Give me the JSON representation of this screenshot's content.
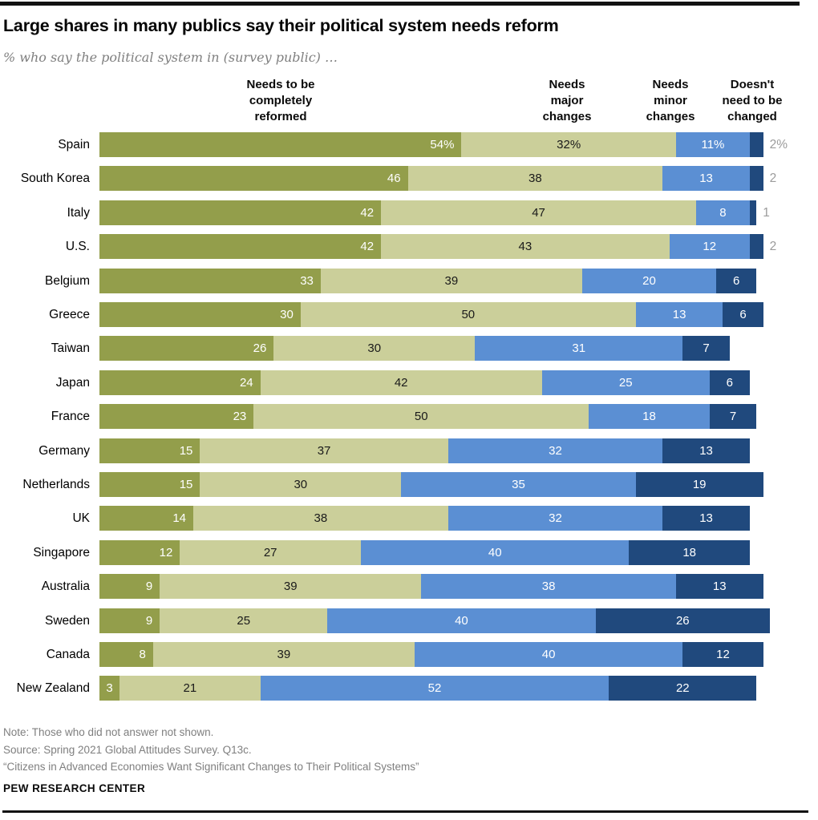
{
  "header": {
    "title": "Large shares in many publics say their political system needs reform",
    "subtitle": "% who say the political system in (survey public) …"
  },
  "column_headers": [
    "Needs to be\ncompletely\nreformed",
    "Needs\nmajor\nchanges",
    "Needs\nminor\nchanges",
    "Doesn't\nneed to be\nchanged"
  ],
  "colors": {
    "completely_reformed": "#939E4B",
    "major_changes": "#CBCF9A",
    "minor_changes": "#5B8FD3",
    "not_changed": "#20497D",
    "outside_label": "#9B9B9B",
    "rule": "#121212",
    "note_text": "#7F7F7F"
  },
  "chart_data": {
    "type": "bar",
    "orientation": "horizontal",
    "stacked": true,
    "xlim": [
      0,
      100
    ],
    "grid": false,
    "legend_position": "top-as-column-headers",
    "value_suffix_first_row": "%",
    "categories": [
      "Spain",
      "South Korea",
      "Italy",
      "U.S.",
      "Belgium",
      "Greece",
      "Taiwan",
      "Japan",
      "France",
      "Germany",
      "Netherlands",
      "UK",
      "Singapore",
      "Australia",
      "Sweden",
      "Canada",
      "New Zealand"
    ],
    "series": [
      {
        "name": "Needs to be completely reformed",
        "color": "#939E4B",
        "values": [
          54,
          46,
          42,
          42,
          33,
          30,
          26,
          24,
          23,
          15,
          15,
          14,
          12,
          9,
          9,
          8,
          3
        ]
      },
      {
        "name": "Needs major changes",
        "color": "#CBCF9A",
        "values": [
          32,
          38,
          47,
          43,
          39,
          50,
          30,
          42,
          50,
          37,
          30,
          38,
          27,
          39,
          25,
          39,
          21
        ]
      },
      {
        "name": "Needs minor changes",
        "color": "#5B8FD3",
        "values": [
          11,
          13,
          8,
          12,
          20,
          13,
          31,
          25,
          18,
          32,
          35,
          32,
          40,
          38,
          40,
          40,
          52
        ]
      },
      {
        "name": "Doesn't need to be changed",
        "color": "#20497D",
        "values": [
          2,
          2,
          1,
          2,
          6,
          6,
          7,
          6,
          7,
          13,
          19,
          13,
          18,
          13,
          26,
          12,
          22
        ]
      }
    ]
  },
  "footer": {
    "notes": [
      "Note: Those who did not answer not shown.",
      "Source: Spring 2021 Global Attitudes Survey. Q13c.",
      "“Citizens in Advanced Economies Want Significant Changes to Their Political Systems”"
    ],
    "brand": "PEW RESEARCH CENTER"
  }
}
